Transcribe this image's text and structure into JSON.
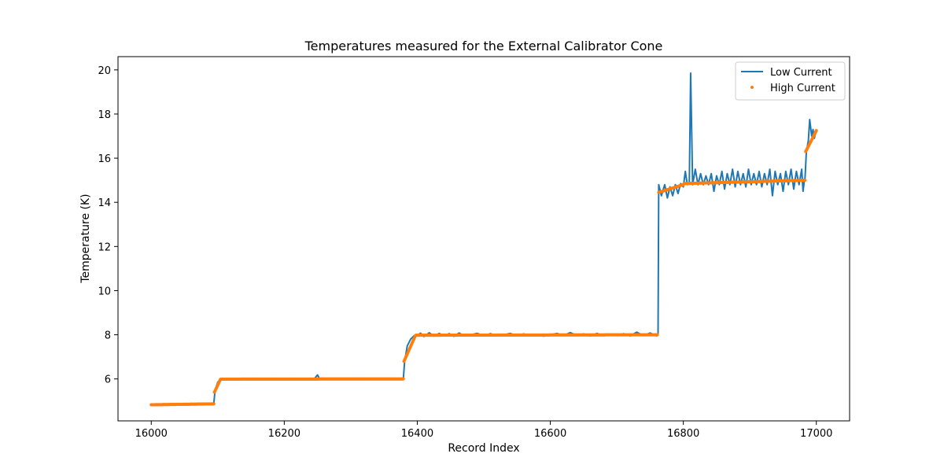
{
  "chart_data": {
    "type": "line",
    "title": "Temperatures measured for the External Calibrator Cone",
    "xlabel": "Record Index",
    "ylabel": "Temperature (K)",
    "xlim": [
      15950,
      17050
    ],
    "ylim": [
      4.1,
      20.6
    ],
    "xticks": [
      16000,
      16200,
      16400,
      16600,
      16800,
      17000
    ],
    "yticks": [
      6,
      8,
      10,
      12,
      14,
      16,
      18,
      20
    ],
    "grid": false,
    "legend_position": "top-right",
    "series": [
      {
        "name": "Low Current",
        "style": "line",
        "color": "#1f77b4",
        "points": [
          [
            16000,
            4.83
          ],
          [
            16050,
            4.85
          ],
          [
            16094,
            4.87
          ],
          [
            16096,
            5.5
          ],
          [
            16100,
            5.85
          ],
          [
            16105,
            5.99
          ],
          [
            16150,
            6.0
          ],
          [
            16200,
            6.0
          ],
          [
            16245,
            6.0
          ],
          [
            16250,
            6.18
          ],
          [
            16253,
            6.0
          ],
          [
            16300,
            6.0
          ],
          [
            16350,
            6.0
          ],
          [
            16379,
            6.0
          ],
          [
            16381,
            6.8
          ],
          [
            16385,
            7.5
          ],
          [
            16390,
            7.8
          ],
          [
            16395,
            7.95
          ],
          [
            16400,
            7.98
          ],
          [
            16405,
            8.07
          ],
          [
            16410,
            7.92
          ],
          [
            16418,
            8.09
          ],
          [
            16425,
            7.94
          ],
          [
            16433,
            8.06
          ],
          [
            16440,
            7.96
          ],
          [
            16448,
            8.05
          ],
          [
            16455,
            7.93
          ],
          [
            16463,
            8.08
          ],
          [
            16470,
            7.95
          ],
          [
            16480,
            8.0
          ],
          [
            16490,
            8.06
          ],
          [
            16500,
            7.96
          ],
          [
            16510,
            8.05
          ],
          [
            16520,
            7.95
          ],
          [
            16530,
            8.0
          ],
          [
            16540,
            8.06
          ],
          [
            16550,
            7.95
          ],
          [
            16560,
            8.04
          ],
          [
            16570,
            7.96
          ],
          [
            16580,
            8.02
          ],
          [
            16590,
            7.94
          ],
          [
            16600,
            8.0
          ],
          [
            16610,
            8.06
          ],
          [
            16620,
            7.96
          ],
          [
            16630,
            8.1
          ],
          [
            16640,
            7.96
          ],
          [
            16650,
            8.04
          ],
          [
            16660,
            7.95
          ],
          [
            16670,
            8.06
          ],
          [
            16680,
            7.96
          ],
          [
            16690,
            8.02
          ],
          [
            16700,
            7.96
          ],
          [
            16710,
            8.05
          ],
          [
            16720,
            7.95
          ],
          [
            16730,
            8.12
          ],
          [
            16740,
            7.96
          ],
          [
            16750,
            8.08
          ],
          [
            16760,
            7.95
          ],
          [
            16762,
            8.0
          ],
          [
            16763,
            14.8
          ],
          [
            16767,
            14.3
          ],
          [
            16772,
            14.8
          ],
          [
            16776,
            14.2
          ],
          [
            16780,
            14.7
          ],
          [
            16784,
            14.3
          ],
          [
            16788,
            14.8
          ],
          [
            16792,
            14.4
          ],
          [
            16796,
            14.85
          ],
          [
            16800,
            14.7
          ],
          [
            16803,
            15.4
          ],
          [
            16806,
            14.8
          ],
          [
            16809,
            14.9
          ],
          [
            16811,
            19.85
          ],
          [
            16814,
            14.8
          ],
          [
            16818,
            15.5
          ],
          [
            16822,
            14.8
          ],
          [
            16826,
            15.3
          ],
          [
            16830,
            14.8
          ],
          [
            16834,
            15.2
          ],
          [
            16838,
            14.8
          ],
          [
            16842,
            15.3
          ],
          [
            16846,
            14.5
          ],
          [
            16850,
            15.2
          ],
          [
            16854,
            14.8
          ],
          [
            16858,
            15.4
          ],
          [
            16862,
            14.6
          ],
          [
            16866,
            15.3
          ],
          [
            16870,
            14.8
          ],
          [
            16874,
            15.5
          ],
          [
            16878,
            14.7
          ],
          [
            16882,
            15.4
          ],
          [
            16886,
            14.8
          ],
          [
            16890,
            15.3
          ],
          [
            16894,
            14.7
          ],
          [
            16898,
            15.5
          ],
          [
            16902,
            14.8
          ],
          [
            16906,
            15.3
          ],
          [
            16910,
            14.8
          ],
          [
            16914,
            15.4
          ],
          [
            16918,
            14.7
          ],
          [
            16922,
            15.3
          ],
          [
            16926,
            14.8
          ],
          [
            16930,
            15.5
          ],
          [
            16934,
            14.3
          ],
          [
            16938,
            15.4
          ],
          [
            16942,
            14.8
          ],
          [
            16946,
            15.3
          ],
          [
            16950,
            14.5
          ],
          [
            16954,
            15.4
          ],
          [
            16958,
            14.8
          ],
          [
            16962,
            15.5
          ],
          [
            16966,
            14.6
          ],
          [
            16970,
            15.4
          ],
          [
            16974,
            14.8
          ],
          [
            16978,
            15.5
          ],
          [
            16980,
            14.5
          ],
          [
            16982,
            15.0
          ],
          [
            16983,
            15.1
          ],
          [
            16985,
            16.3
          ],
          [
            16988,
            16.8
          ],
          [
            16990,
            17.75
          ],
          [
            16993,
            17.0
          ],
          [
            16995,
            17.3
          ],
          [
            16997,
            16.9
          ],
          [
            17000,
            17.3
          ]
        ]
      },
      {
        "name": "High Current",
        "style": "scatter",
        "color": "#ff7f0e",
        "segments": [
          {
            "x0": 16000,
            "x1": 16094,
            "y0": 4.83,
            "y1": 4.87
          },
          {
            "x0": 16095,
            "x1": 16104,
            "y0": 5.4,
            "y1": 5.98
          },
          {
            "x0": 16105,
            "x1": 16379,
            "y0": 5.99,
            "y1": 6.0
          },
          {
            "x0": 16380,
            "x1": 16397,
            "y0": 6.8,
            "y1": 7.95
          },
          {
            "x0": 16398,
            "x1": 16761,
            "y0": 7.98,
            "y1": 8.0
          },
          {
            "x0": 16763,
            "x1": 16800,
            "y0": 14.45,
            "y1": 14.8
          },
          {
            "x0": 16801,
            "x1": 16983,
            "y0": 14.85,
            "y1": 15.0
          },
          {
            "x0": 16984,
            "x1": 17000,
            "y0": 16.3,
            "y1": 17.25
          }
        ]
      }
    ]
  }
}
